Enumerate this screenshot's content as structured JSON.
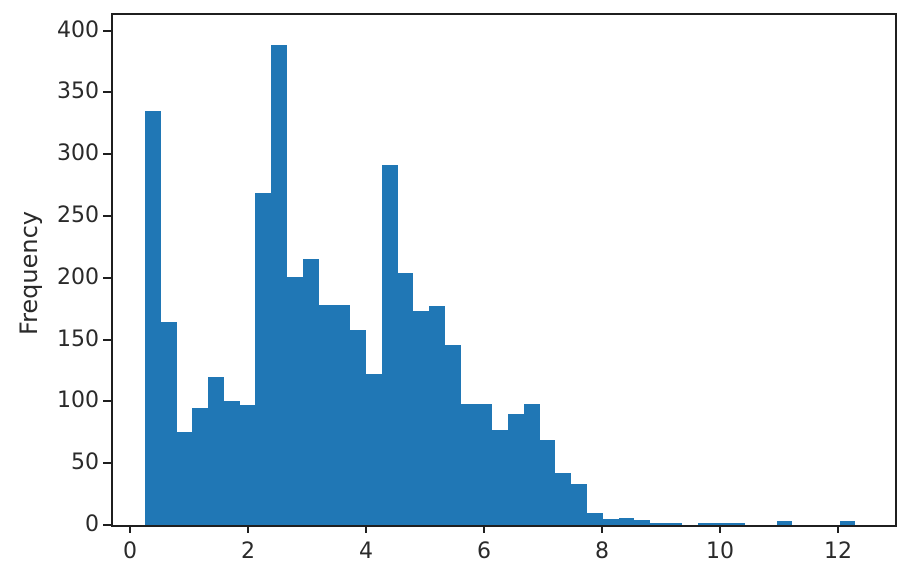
{
  "chart_data": {
    "type": "bar",
    "subtype": "histogram",
    "title": "",
    "xlabel": "",
    "ylabel": "Frequency",
    "bar_color": "#2077b5",
    "spine_color": "#1f1f1f",
    "text_color": "#2a2a2a",
    "background_color": "#ffffff",
    "grid": false,
    "legend": false,
    "bin_start": 0.254,
    "bin_width": 0.2676,
    "bin_count": 45,
    "frequencies": [
      335,
      164,
      75,
      95,
      120,
      100,
      97,
      269,
      388,
      201,
      215,
      178,
      178,
      158,
      122,
      291,
      204,
      173,
      177,
      146,
      98,
      98,
      77,
      90,
      98,
      69,
      42,
      33,
      10,
      5,
      6,
      4,
      2,
      2,
      0,
      2,
      2,
      2,
      0,
      0,
      3,
      0,
      0,
      0,
      3
    ],
    "x_ticks": [
      0,
      2,
      4,
      6,
      8,
      10,
      12
    ],
    "y_ticks": [
      0,
      50,
      100,
      150,
      200,
      250,
      300,
      350,
      400
    ],
    "xlim": [
      -0.288,
      12.966
    ],
    "ylim": [
      0,
      412.6
    ]
  }
}
